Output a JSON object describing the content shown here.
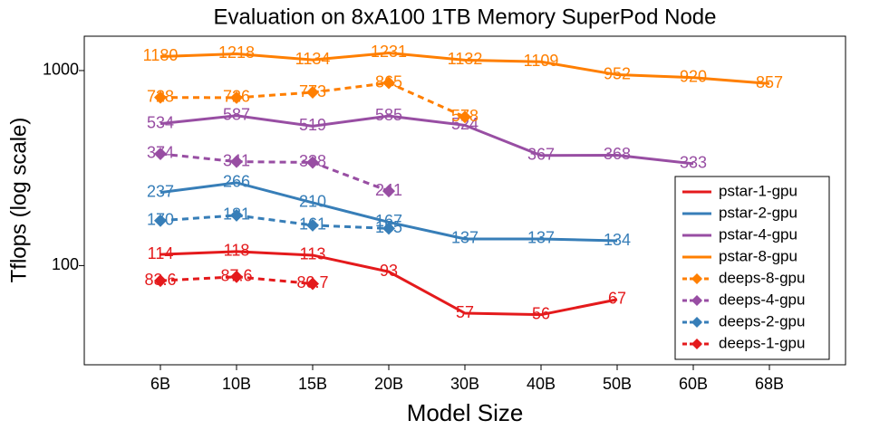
{
  "chart_data": {
    "type": "line",
    "title": "Evaluation on 8xA100 1TB Memory SuperPod Node",
    "x_label": "Model Size",
    "y_label": "Tflops (log scale)",
    "categories": [
      "6B",
      "10B",
      "15B",
      "20B",
      "30B",
      "40B",
      "50B",
      "60B",
      "68B"
    ],
    "log_scale": true,
    "ylim": [
      31,
      1500
    ],
    "yticks": [
      100,
      1000
    ],
    "legend": "lower right",
    "series": [
      {
        "name": "pstar-1-gpu",
        "color": "#e41a1c",
        "line_style": "solid",
        "marker": "none",
        "values": [
          114,
          118,
          113,
          93,
          57,
          56,
          67,
          null,
          null
        ]
      },
      {
        "name": "pstar-2-gpu",
        "color": "#377eb8",
        "line_style": "solid",
        "marker": "none",
        "values": [
          237,
          266,
          210,
          167,
          137,
          137,
          134,
          null,
          null
        ]
      },
      {
        "name": "pstar-4-gpu",
        "color": "#984ea3",
        "line_style": "solid",
        "marker": "none",
        "values": [
          534,
          587,
          519,
          585,
          524,
          367,
          368,
          333,
          null
        ]
      },
      {
        "name": "pstar-8-gpu",
        "color": "#ff7f00",
        "line_style": "solid",
        "marker": "none",
        "values": [
          1180,
          1218,
          1134,
          1231,
          1132,
          1109,
          952,
          920,
          857
        ]
      },
      {
        "name": "deeps-8-gpu",
        "color": "#ff7f00",
        "line_style": "dashed",
        "marker": "diamond",
        "values": [
          728,
          726,
          773,
          865,
          578,
          null,
          null,
          null,
          null
        ]
      },
      {
        "name": "deeps-4-gpu",
        "color": "#984ea3",
        "line_style": "dashed",
        "marker": "diamond",
        "values": [
          374,
          341,
          338,
          241,
          null,
          null,
          null,
          null,
          null
        ]
      },
      {
        "name": "deeps-2-gpu",
        "color": "#377eb8",
        "line_style": "dashed",
        "marker": "diamond",
        "values": [
          170,
          181,
          161,
          155,
          null,
          null,
          null,
          null,
          null
        ]
      },
      {
        "name": "deeps-1-gpu",
        "color": "#e41a1c",
        "line_style": "dashed",
        "marker": "diamond",
        "values": [
          83.6,
          87.6,
          80.7,
          null,
          null,
          null,
          null,
          null,
          null
        ]
      }
    ]
  }
}
